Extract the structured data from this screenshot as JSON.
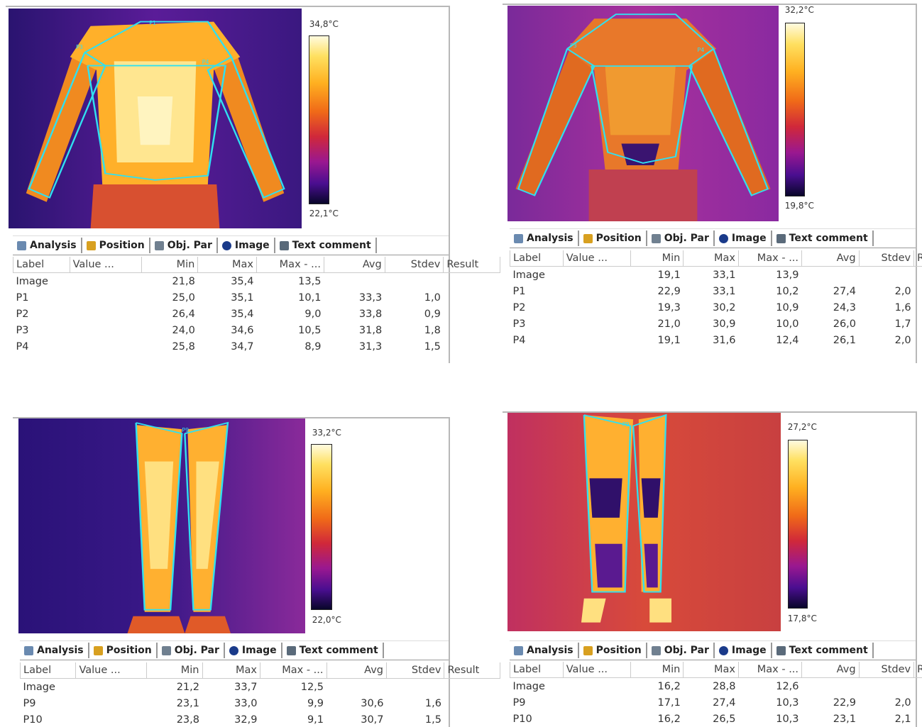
{
  "tabs": [
    "Analysis",
    "Position",
    "Obj. Par",
    "Image",
    "Text comment"
  ],
  "columns": [
    "Label",
    "Value ...",
    "Min",
    "Max",
    "Max - ...",
    "Avg",
    "Stdev",
    "Result"
  ],
  "panels": [
    {
      "scale_max": "34,8°C",
      "scale_min": "22,1°C",
      "roi_labels": [
        "P1",
        "P3",
        "P4"
      ],
      "rows": [
        [
          "Image",
          "21,8",
          "35,4",
          "13,5"
        ],
        [
          "P1",
          "25,0",
          "35,1",
          "10,1",
          "33,3",
          "1,0"
        ],
        [
          "P2",
          "26,4",
          "35,4",
          "9,0",
          "33,8",
          "0,9"
        ],
        [
          "P3",
          "24,0",
          "34,6",
          "10,5",
          "31,8",
          "1,8"
        ],
        [
          "P4",
          "25,8",
          "34,7",
          "8,9",
          "31,3",
          "1,5"
        ]
      ]
    },
    {
      "scale_max": "32,2°C",
      "scale_min": "19,8°C",
      "roi_labels": [
        "P3",
        "P4"
      ],
      "rows": [
        [
          "Image",
          "19,1",
          "33,1",
          "13,9"
        ],
        [
          "P1",
          "22,9",
          "33,1",
          "10,2",
          "27,4",
          "2,0"
        ],
        [
          "P2",
          "19,3",
          "30,2",
          "10,9",
          "24,3",
          "1,6"
        ],
        [
          "P3",
          "21,0",
          "30,9",
          "10,0",
          "26,0",
          "1,7"
        ],
        [
          "P4",
          "19,1",
          "31,6",
          "12,4",
          "26,1",
          "2,0"
        ]
      ]
    },
    {
      "scale_max": "33,2°C",
      "scale_min": "22,0°C",
      "roi_labels": [
        "P9"
      ],
      "rows": [
        [
          "Image",
          "21,2",
          "33,7",
          "12,5"
        ],
        [
          "P9",
          "23,1",
          "33,0",
          "9,9",
          "30,6",
          "1,6"
        ],
        [
          "P10",
          "23,8",
          "32,9",
          "9,1",
          "30,7",
          "1,5"
        ]
      ]
    },
    {
      "scale_max": "27,2°C",
      "scale_min": "17,8°C",
      "roi_labels": [
        "P9"
      ],
      "rows": [
        [
          "Image",
          "16,2",
          "28,8",
          "12,6"
        ],
        [
          "P9",
          "17,1",
          "27,4",
          "10,3",
          "22,9",
          "2,0"
        ],
        [
          "P10",
          "16,2",
          "26,5",
          "10,3",
          "23,1",
          "2,1"
        ]
      ]
    }
  ]
}
